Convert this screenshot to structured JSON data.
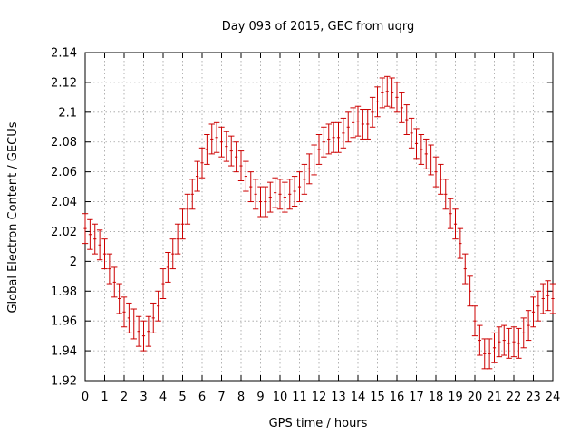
{
  "chart_data": {
    "type": "scatter",
    "title": "Day 093 of 2015, GEC from uqrg",
    "xlabel": "GPS time / hours",
    "ylabel": "Global Electron Content / GECUs",
    "xlim": [
      0,
      24
    ],
    "ylim": [
      1.92,
      2.14
    ],
    "xticks": [
      0,
      1,
      2,
      3,
      4,
      5,
      6,
      7,
      8,
      9,
      10,
      11,
      12,
      13,
      14,
      15,
      16,
      17,
      18,
      19,
      20,
      21,
      22,
      23,
      24
    ],
    "yticks": [
      1.92,
      1.94,
      1.96,
      1.98,
      2.0,
      2.02,
      2.04,
      2.06,
      2.08,
      2.1,
      2.12,
      2.14
    ],
    "grid": true,
    "series_color": "#cc0000",
    "series": [
      {
        "error": 0.01,
        "x": [
          0,
          0.25,
          0.5,
          0.75,
          1,
          1.25,
          1.5,
          1.75,
          2,
          2.25,
          2.5,
          2.75,
          3,
          3.25,
          3.5,
          3.75,
          4,
          4.25,
          4.5,
          4.75,
          5,
          5.25,
          5.5,
          5.75,
          6,
          6.25,
          6.5,
          6.75,
          7,
          7.25,
          7.5,
          7.75,
          8,
          8.25,
          8.5,
          8.75,
          9,
          9.25,
          9.5,
          9.75,
          10,
          10.25,
          10.5,
          10.75,
          11,
          11.25,
          11.5,
          11.75,
          12,
          12.25,
          12.5,
          12.75,
          13,
          13.25,
          13.5,
          13.75,
          14,
          14.25,
          14.5,
          14.75,
          15,
          15.25,
          15.5,
          15.75,
          16,
          16.25,
          16.5,
          16.75,
          17,
          17.25,
          17.5,
          17.75,
          18,
          18.25,
          18.5,
          18.75,
          19,
          19.25,
          19.5,
          19.75,
          20,
          20.25,
          20.5,
          20.75,
          21,
          21.25,
          21.5,
          21.75,
          22,
          22.25,
          22.5,
          22.75,
          23,
          23.25,
          23.5,
          23.75,
          24
        ],
        "y": [
          2.022,
          2.018,
          2.015,
          2.011,
          2.005,
          1.995,
          1.986,
          1.975,
          1.966,
          1.962,
          1.958,
          1.953,
          1.95,
          1.953,
          1.962,
          1.97,
          1.985,
          1.996,
          2.005,
          2.015,
          2.025,
          2.035,
          2.045,
          2.057,
          2.066,
          2.075,
          2.082,
          2.083,
          2.08,
          2.077,
          2.074,
          2.07,
          2.064,
          2.057,
          2.05,
          2.045,
          2.04,
          2.04,
          2.043,
          2.046,
          2.045,
          2.043,
          2.045,
          2.047,
          2.05,
          2.055,
          2.062,
          2.068,
          2.075,
          2.08,
          2.082,
          2.083,
          2.083,
          2.086,
          2.09,
          2.093,
          2.094,
          2.092,
          2.092,
          2.1,
          2.107,
          2.113,
          2.114,
          2.113,
          2.11,
          2.103,
          2.095,
          2.086,
          2.079,
          2.075,
          2.072,
          2.068,
          2.06,
          2.055,
          2.045,
          2.032,
          2.025,
          2.012,
          1.995,
          1.98,
          1.96,
          1.947,
          1.938,
          1.938,
          1.942,
          1.946,
          1.947,
          1.945,
          1.946,
          1.945,
          1.952,
          1.957,
          1.966,
          1.97,
          1.975,
          1.977,
          1.975
        ]
      }
    ]
  }
}
